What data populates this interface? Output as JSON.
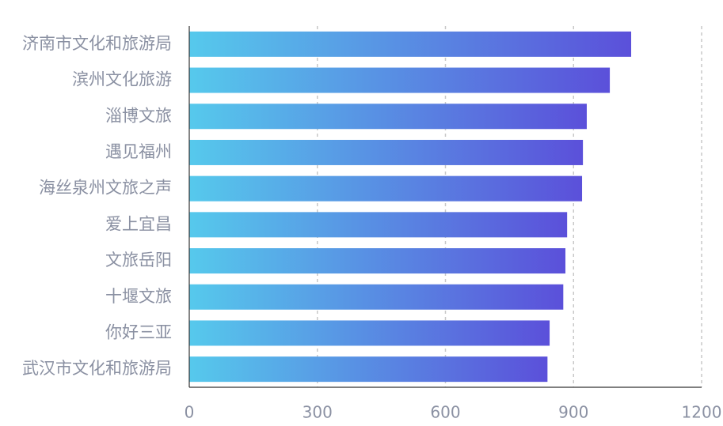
{
  "chart_data": {
    "type": "bar",
    "orientation": "horizontal",
    "categories": [
      "济南市文化和旅游局",
      "滨州文化旅游",
      "淄博文旅",
      "遇见福州",
      "海丝泉州文旅之声",
      "爱上宜昌",
      "文旅岳阳",
      "十堰文旅",
      "你好三亚",
      "武汉市文化和旅游局"
    ],
    "values": [
      1035,
      985,
      931,
      922,
      920,
      885,
      881,
      876,
      844,
      839
    ],
    "gradient": [
      "#56c9ec",
      "#5b50da"
    ],
    "xlim": [
      0,
      1200
    ],
    "xticks": [
      0,
      300,
      600,
      900,
      1200
    ],
    "grid": true
  }
}
